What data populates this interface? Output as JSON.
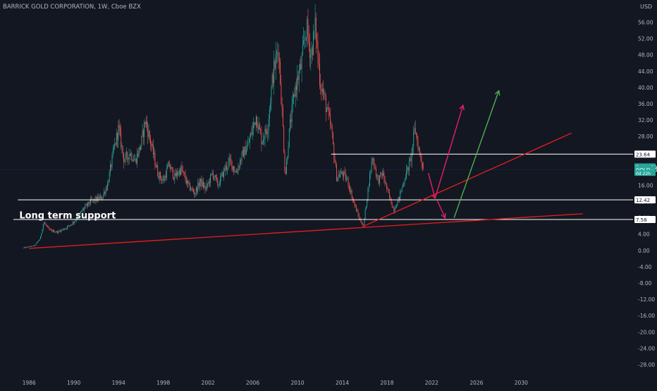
{
  "header": {
    "symbol_title": "BARRICK GOLD CORPORATION, 1W, Cboe BZX",
    "currency": "USD"
  },
  "colors": {
    "background": "#131722",
    "axis_text": "#b2b5be",
    "candle_up": "#26a69a",
    "candle_down": "#ef5350",
    "trendline": "#e91e1e",
    "level_line": "#ffffff",
    "arrow_pink": "#e91e63",
    "arrow_green": "#4caf50",
    "badge_teal": "#26a69a"
  },
  "chart_data": {
    "type": "candlestick",
    "title": "BARRICK GOLD CORPORATION, 1W, Cboe BZX",
    "ylabel": "USD",
    "ylim": [
      -30,
      58
    ],
    "xlim": [
      1983.4,
      2040.0
    ],
    "x_ticks": [
      1986,
      1990,
      1994,
      1998,
      2002,
      2006,
      2010,
      2014,
      2018,
      2022,
      2026,
      2030
    ],
    "y_ticks": [
      56,
      52,
      48,
      44,
      40,
      36,
      32,
      28,
      24,
      20,
      16,
      12,
      8,
      4,
      0,
      -4,
      -8,
      -12,
      -16,
      -20,
      -24,
      -28
    ],
    "price_path": [
      [
        1985.5,
        0.6
      ],
      [
        1986.5,
        1.2
      ],
      [
        1987.0,
        3.0
      ],
      [
        1987.3,
        7.0
      ],
      [
        1987.8,
        5.0
      ],
      [
        1988.5,
        4.5
      ],
      [
        1989.3,
        5.5
      ],
      [
        1990.0,
        7.0
      ],
      [
        1990.8,
        10.0
      ],
      [
        1991.5,
        12.0
      ],
      [
        1992.5,
        13.0
      ],
      [
        1993.0,
        16.0
      ],
      [
        1993.6,
        25.0
      ],
      [
        1994.0,
        30.0
      ],
      [
        1994.5,
        22.0
      ],
      [
        1995.0,
        24.0
      ],
      [
        1995.5,
        22.0
      ],
      [
        1996.0,
        26.0
      ],
      [
        1996.4,
        32.0
      ],
      [
        1997.0,
        25.0
      ],
      [
        1997.5,
        19.0
      ],
      [
        1998.0,
        17.0
      ],
      [
        1998.5,
        21.0
      ],
      [
        1999.0,
        18.0
      ],
      [
        1999.6,
        20.0
      ],
      [
        2000.2,
        16.0
      ],
      [
        2000.8,
        14.0
      ],
      [
        2001.3,
        17.0
      ],
      [
        2001.8,
        15.0
      ],
      [
        2002.4,
        19.0
      ],
      [
        2002.9,
        16.0
      ],
      [
        2003.5,
        20.0
      ],
      [
        2004.0,
        22.0
      ],
      [
        2004.5,
        19.0
      ],
      [
        2005.0,
        23.0
      ],
      [
        2005.6,
        26.0
      ],
      [
        2006.3,
        33.0
      ],
      [
        2006.8,
        27.0
      ],
      [
        2007.3,
        30.0
      ],
      [
        2007.8,
        43.0
      ],
      [
        2008.3,
        50.0
      ],
      [
        2008.7,
        30.0
      ],
      [
        2008.9,
        18.0
      ],
      [
        2009.3,
        30.0
      ],
      [
        2009.8,
        40.0
      ],
      [
        2010.3,
        45.0
      ],
      [
        2010.8,
        55.0
      ],
      [
        2011.2,
        48.0
      ],
      [
        2011.6,
        55.0
      ],
      [
        2012.0,
        42.0
      ],
      [
        2012.5,
        36.0
      ],
      [
        2013.0,
        30.0
      ],
      [
        2013.5,
        18.0
      ],
      [
        2014.0,
        19.0
      ],
      [
        2014.5,
        17.0
      ],
      [
        2015.0,
        12.0
      ],
      [
        2015.5,
        8.0
      ],
      [
        2015.9,
        6.0
      ],
      [
        2016.3,
        15.0
      ],
      [
        2016.7,
        23.0
      ],
      [
        2017.2,
        17.0
      ],
      [
        2017.6,
        19.0
      ],
      [
        2018.1,
        14.0
      ],
      [
        2018.6,
        10.0
      ],
      [
        2019.1,
        13.0
      ],
      [
        2019.6,
        18.0
      ],
      [
        2020.1,
        22.0
      ],
      [
        2020.5,
        30.0
      ],
      [
        2020.9,
        24.0
      ],
      [
        2021.3,
        19.86
      ]
    ],
    "horizontal_levels": [
      {
        "value": 23.64,
        "from": 2013.0
      },
      {
        "value": 12.42,
        "from": 1985.0
      },
      {
        "value": 7.58,
        "from": 1984.6
      }
    ],
    "trendlines": [
      {
        "name": "Long term support",
        "from": [
          1986.0,
          0.5
        ],
        "to": [
          2035.5,
          9.0
        ]
      },
      {
        "from": [
          2015.8,
          5.8
        ],
        "to": [
          2034.5,
          28.8
        ]
      }
    ],
    "annotations": [
      {
        "text": "Long term support",
        "x": 1985.5,
        "y": 8.2
      }
    ],
    "arrows": [
      {
        "color": "pink",
        "from": [
          2021.7,
          19.0
        ],
        "to": [
          2022.3,
          12.8
        ]
      },
      {
        "color": "pink",
        "from": [
          2022.3,
          12.8
        ],
        "to": [
          2024.8,
          35.6
        ]
      },
      {
        "color": "pink",
        "from": [
          2022.5,
          12.2
        ],
        "to": [
          2023.2,
          8.0
        ]
      },
      {
        "color": "green",
        "from": [
          2024.0,
          8.0
        ],
        "to": [
          2028.0,
          39.2
        ]
      }
    ],
    "price_badges": [
      {
        "label": "23.64",
        "value": 23.64,
        "style": "white"
      },
      {
        "label": "Post · 19.86",
        "value": 20.5,
        "style": "teal"
      },
      {
        "label": "GOLD · 19.86",
        "value": 19.86,
        "style": "teal"
      },
      {
        "label": "0d 22h",
        "value": 19.0,
        "style": "teal-small"
      },
      {
        "label": "12.42",
        "value": 12.42,
        "style": "white"
      },
      {
        "label": "7.58",
        "value": 7.58,
        "style": "white"
      }
    ]
  }
}
